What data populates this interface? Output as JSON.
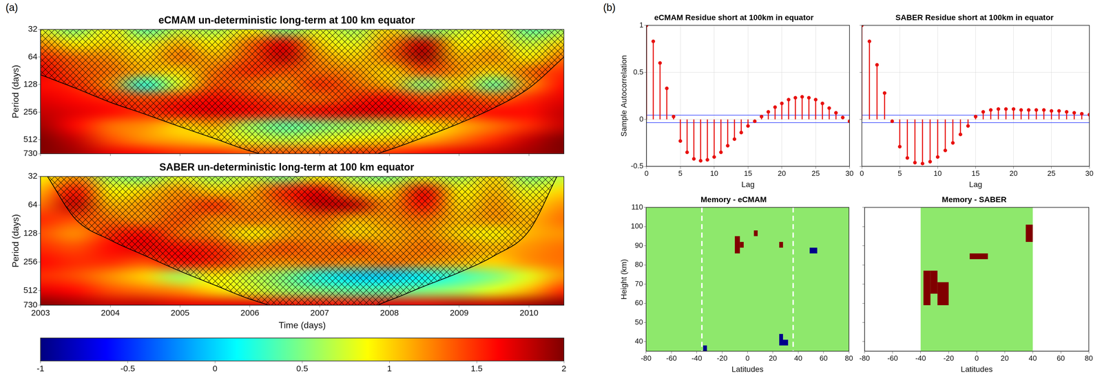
{
  "panel_labels": [
    "(a)",
    "(b)"
  ],
  "chart_data": [
    {
      "type": "heatmap",
      "title": "eCMAM un-deterministic long-term at 100 km equator",
      "ylabel": "Period (days)",
      "log": "y",
      "tick_labels": "y",
      "grid": false,
      "xlim": [
        2003,
        2010.5
      ],
      "xticks": [
        2003,
        2004,
        2005,
        2006,
        2007,
        2008,
        2009,
        2010
      ],
      "ylim": [
        32,
        730
      ],
      "yticks": [
        32,
        64,
        128,
        256,
        512,
        730
      ],
      "zlim": [
        -1,
        2
      ],
      "x": [
        2003,
        2003.5,
        2004,
        2004.5,
        2005,
        2005.5,
        2006,
        2006.5,
        2007,
        2007.5,
        2008,
        2008.5,
        2009,
        2009.5,
        2010,
        2010.5
      ],
      "y": [
        32,
        45,
        64,
        91,
        128,
        181,
        256,
        362,
        512,
        724
      ],
      "z": [
        [
          0.8,
          0.5,
          0.9,
          0.4,
          0.7,
          0.6,
          0.9,
          0.5,
          0.8,
          0.6,
          1.0,
          0.5,
          0.7,
          0.9,
          0.4,
          0.6
        ],
        [
          1.2,
          0.9,
          1.0,
          0.8,
          1.1,
          0.9,
          1.3,
          1.7,
          1.0,
          0.8,
          1.2,
          1.8,
          0.9,
          1.0,
          0.7,
          1.0
        ],
        [
          1.5,
          1.3,
          1.2,
          1.0,
          1.3,
          1.1,
          1.4,
          1.8,
          1.2,
          1.0,
          1.3,
          1.9,
          1.1,
          1.2,
          0.9,
          1.3
        ],
        [
          1.7,
          1.4,
          1.3,
          1.1,
          1.0,
          1.3,
          1.5,
          1.4,
          1.3,
          1.2,
          1.0,
          1.4,
          1.2,
          1.0,
          1.3,
          1.5
        ],
        [
          1.6,
          1.5,
          1.2,
          0.2,
          0.8,
          1.4,
          1.3,
          1.2,
          1.5,
          1.3,
          1.1,
          0.5,
          1.0,
          0.4,
          1.2,
          1.6
        ],
        [
          1.7,
          1.6,
          1.5,
          1.4,
          1.5,
          1.6,
          1.5,
          1.4,
          1.3,
          1.5,
          1.6,
          1.4,
          1.5,
          1.3,
          1.5,
          1.7
        ],
        [
          1.8,
          1.7,
          1.6,
          1.5,
          1.6,
          1.7,
          1.6,
          1.5,
          1.6,
          1.7,
          1.7,
          1.6,
          1.5,
          1.6,
          1.6,
          1.8
        ],
        [
          1.9,
          1.6,
          1.3,
          1.2,
          1.0,
          1.1,
          0.6,
          0.4,
          0.5,
          0.6,
          0.7,
          0.9,
          1.1,
          1.3,
          1.5,
          1.8
        ],
        [
          2.0,
          1.8,
          1.4,
          1.2,
          1.1,
          1.0,
          0.8,
          0.7,
          0.8,
          0.9,
          1.0,
          1.1,
          1.3,
          1.5,
          1.8,
          2.0
        ],
        [
          2.0,
          1.9,
          1.7,
          1.6,
          1.5,
          1.5,
          1.4,
          1.4,
          1.4,
          1.5,
          1.5,
          1.6,
          1.7,
          1.8,
          1.9,
          2.0
        ]
      ],
      "coi": {
        "x": [
          2003,
          2003.5,
          2004,
          2004.5,
          2005,
          2005.5,
          2006,
          2006.75,
          2007.5,
          2008,
          2008.5,
          2009,
          2009.5,
          2010,
          2010.5
        ],
        "y": [
          100,
          140,
          200,
          270,
          370,
          500,
          680,
          900,
          850,
          660,
          480,
          340,
          230,
          140,
          64
        ],
        "color": "#000000"
      }
    },
    {
      "type": "heatmap",
      "title": "SABER un-deterministic long-term at 100 km equator",
      "xlabel": "Time (days)",
      "ylabel": "Period (days)",
      "log": "y",
      "grid": false,
      "xlim": [
        2003,
        2010.5
      ],
      "xticks": [
        2003,
        2004,
        2005,
        2006,
        2007,
        2008,
        2009,
        2010
      ],
      "ylim": [
        32,
        730
      ],
      "yticks": [
        32,
        64,
        128,
        256,
        512,
        730
      ],
      "zlim": [
        -1,
        2
      ],
      "x": [
        2003,
        2003.5,
        2004,
        2004.5,
        2005,
        2005.5,
        2006,
        2006.5,
        2007,
        2007.5,
        2008,
        2008.5,
        2009,
        2009.5,
        2010,
        2010.5
      ],
      "y": [
        32,
        45,
        64,
        91,
        128,
        181,
        256,
        362,
        512,
        724
      ],
      "z": [
        [
          0.9,
          1.2,
          0.6,
          0.5,
          0.8,
          0.6,
          0.7,
          0.5,
          0.9,
          0.6,
          0.5,
          0.8,
          0.6,
          1.0,
          0.5,
          0.7
        ],
        [
          1.1,
          1.6,
          0.9,
          1.0,
          1.2,
          1.0,
          1.1,
          1.5,
          1.7,
          1.1,
          1.0,
          1.7,
          0.9,
          1.1,
          0.8,
          1.0
        ],
        [
          1.3,
          1.8,
          1.1,
          1.2,
          1.3,
          1.5,
          1.2,
          1.4,
          1.8,
          1.8,
          1.2,
          1.6,
          1.0,
          1.2,
          1.0,
          1.2
        ],
        [
          1.5,
          1.4,
          1.3,
          1.2,
          1.4,
          1.2,
          1.3,
          1.2,
          1.3,
          1.1,
          1.2,
          1.3,
          1.1,
          1.2,
          1.1,
          1.3
        ],
        [
          1.4,
          1.2,
          1.5,
          1.6,
          1.3,
          1.2,
          0.9,
          1.1,
          1.2,
          1.0,
          1.1,
          1.2,
          1.0,
          0.9,
          1.1,
          1.2
        ],
        [
          1.5,
          1.4,
          1.6,
          1.7,
          1.6,
          1.5,
          1.3,
          1.4,
          1.3,
          1.4,
          1.2,
          1.3,
          1.2,
          1.1,
          1.2,
          1.3
        ],
        [
          1.6,
          1.5,
          1.5,
          1.4,
          1.6,
          1.5,
          1.3,
          1.2,
          1.3,
          1.2,
          1.3,
          1.2,
          1.1,
          1.0,
          1.2,
          1.3
        ],
        [
          1.5,
          1.4,
          1.2,
          1.0,
          0.6,
          0.9,
          0.7,
          0.5,
          0.2,
          0.0,
          0.0,
          0.1,
          0.3,
          0.5,
          0.8,
          1.2
        ],
        [
          1.7,
          1.6,
          1.4,
          1.3,
          1.2,
          1.0,
          0.8,
          0.6,
          0.5,
          0.4,
          0.4,
          0.5,
          0.6,
          0.8,
          1.1,
          1.5
        ],
        [
          2.0,
          1.9,
          1.8,
          1.8,
          1.7,
          1.7,
          1.7,
          1.6,
          1.6,
          1.6,
          1.7,
          1.7,
          1.8,
          1.8,
          1.9,
          2.0
        ]
      ],
      "coi": {
        "x": [
          2003.1,
          2003.5,
          2004,
          2004.5,
          2005,
          2005.5,
          2006,
          2006.75,
          2007.5,
          2008,
          2008.5,
          2009,
          2009.5,
          2010,
          2010.4
        ],
        "y": [
          32,
          90,
          150,
          220,
          320,
          450,
          630,
          850,
          850,
          650,
          460,
          330,
          220,
          120,
          32
        ],
        "color": "#000000"
      }
    },
    {
      "type": "colorbar",
      "zlim": [
        -1,
        2
      ],
      "zticks": [
        -1,
        -0.5,
        0,
        0.5,
        1,
        1.5,
        2
      ]
    },
    {
      "type": "stem",
      "title": "eCMAM Residue short at 100km in equator",
      "xlabel": "Lag",
      "ylabel": "Sample Autocorrelation",
      "grid": true,
      "marker": "circle",
      "color": "#e8110f",
      "xlim": [
        0,
        30
      ],
      "xticks": [
        0,
        5,
        10,
        15,
        20,
        25,
        30
      ],
      "ylim": [
        -0.5,
        1
      ],
      "yticks": [
        -0.5,
        0,
        0.5,
        1
      ],
      "x": [
        0,
        1,
        2,
        3,
        4,
        5,
        6,
        7,
        8,
        9,
        10,
        11,
        12,
        13,
        14,
        15,
        16,
        17,
        18,
        19,
        20,
        21,
        22,
        23,
        24,
        25,
        26,
        27,
        28,
        29,
        30
      ],
      "values": [
        1,
        0.83,
        0.6,
        0.33,
        0.03,
        -0.23,
        -0.35,
        -0.42,
        -0.44,
        -0.43,
        -0.4,
        -0.35,
        -0.28,
        -0.21,
        -0.14,
        -0.07,
        -0.02,
        0.03,
        0.08,
        0.13,
        0.17,
        0.21,
        0.23,
        0.24,
        0.23,
        0.21,
        0.17,
        0.12,
        0.07,
        0.02,
        -0.02
      ],
      "bounds": {
        "values": [
          0.045,
          -0.035
        ],
        "color": "#2b3cff"
      }
    },
    {
      "type": "stem",
      "title": "SABER Residue short at 100km in equator",
      "xlabel": "Lag",
      "grid": true,
      "marker": "circle",
      "color": "#e8110f",
      "tick_labels": "x",
      "xlim": [
        0,
        30
      ],
      "xticks": [
        0,
        5,
        10,
        15,
        20,
        25,
        30
      ],
      "ylim": [
        -0.5,
        1
      ],
      "yticks": [
        -0.5,
        0,
        0.5,
        1
      ],
      "x": [
        0,
        1,
        2,
        3,
        4,
        5,
        6,
        7,
        8,
        9,
        10,
        11,
        12,
        13,
        14,
        15,
        16,
        17,
        18,
        19,
        20,
        21,
        22,
        23,
        24,
        25,
        26,
        27,
        28,
        29,
        30
      ],
      "values": [
        1,
        0.83,
        0.58,
        0.28,
        -0.02,
        -0.29,
        -0.41,
        -0.46,
        -0.47,
        -0.45,
        -0.4,
        -0.33,
        -0.25,
        -0.16,
        -0.07,
        0.03,
        0.08,
        0.1,
        0.11,
        0.11,
        0.11,
        0.1,
        0.1,
        0.1,
        0.1,
        0.09,
        0.09,
        0.08,
        0.07,
        0.06,
        0.05
      ],
      "bounds": {
        "values": [
          0.045,
          -0.035
        ],
        "color": "#2b3cff"
      }
    },
    {
      "type": "regions",
      "title": "Memory - eCMAM",
      "xlabel": "Latitudes",
      "ylabel": "Height (km)",
      "grid": false,
      "xlim": [
        -80,
        80
      ],
      "xticks": [
        -80,
        -60,
        -40,
        -20,
        0,
        20,
        40,
        60,
        80
      ],
      "ylim": [
        35,
        110
      ],
      "yticks": [
        40,
        50,
        60,
        70,
        80,
        90,
        100,
        110
      ],
      "regions": [
        {
          "lat": [
            -80,
            80
          ],
          "height": [
            35,
            110
          ],
          "color": "#8ee86c"
        },
        {
          "lat": [
            -10,
            -6
          ],
          "height": [
            86,
            95
          ],
          "color": "#800000"
        },
        {
          "lat": [
            -6,
            -3
          ],
          "height": [
            89,
            92
          ],
          "color": "#800000"
        },
        {
          "lat": [
            5,
            8
          ],
          "height": [
            95,
            98
          ],
          "color": "#800000"
        },
        {
          "lat": [
            25,
            28
          ],
          "height": [
            89,
            92
          ],
          "color": "#800000"
        },
        {
          "lat": [
            49,
            55
          ],
          "height": [
            86,
            89
          ],
          "color": "#00008b"
        },
        {
          "lat": [
            -35,
            -32
          ],
          "height": [
            35,
            38
          ],
          "color": "#00008b"
        },
        {
          "lat": [
            25,
            28
          ],
          "height": [
            38,
            44
          ],
          "color": "#00008b"
        },
        {
          "lat": [
            28,
            32
          ],
          "height": [
            38,
            41
          ],
          "color": "#00008b"
        }
      ],
      "vlines": {
        "values": [
          -36,
          36
        ],
        "color": "#ffffff",
        "line_style": "dashed"
      }
    },
    {
      "type": "regions",
      "title": "Memory - SABER",
      "xlabel": "Latitudes",
      "grid": false,
      "tick_labels": "x",
      "xlim": [
        -80,
        80
      ],
      "xticks": [
        -80,
        -60,
        -40,
        -20,
        0,
        20,
        40,
        60,
        80
      ],
      "ylim": [
        35,
        110
      ],
      "yticks": [
        40,
        50,
        60,
        70,
        80,
        90,
        100,
        110
      ],
      "regions": [
        {
          "lat": [
            -40,
            40
          ],
          "height": [
            35,
            110
          ],
          "color": "#8ee86c"
        },
        {
          "lat": [
            -38,
            -33
          ],
          "height": [
            59,
            77
          ],
          "color": "#800000"
        },
        {
          "lat": [
            -33,
            -28
          ],
          "height": [
            65,
            77
          ],
          "color": "#800000"
        },
        {
          "lat": [
            -28,
            -20
          ],
          "height": [
            59,
            71
          ],
          "color": "#800000"
        },
        {
          "lat": [
            -5,
            8
          ],
          "height": [
            83,
            86
          ],
          "color": "#800000"
        },
        {
          "lat": [
            35,
            40
          ],
          "height": [
            92,
            101
          ],
          "color": "#800000"
        }
      ]
    }
  ]
}
